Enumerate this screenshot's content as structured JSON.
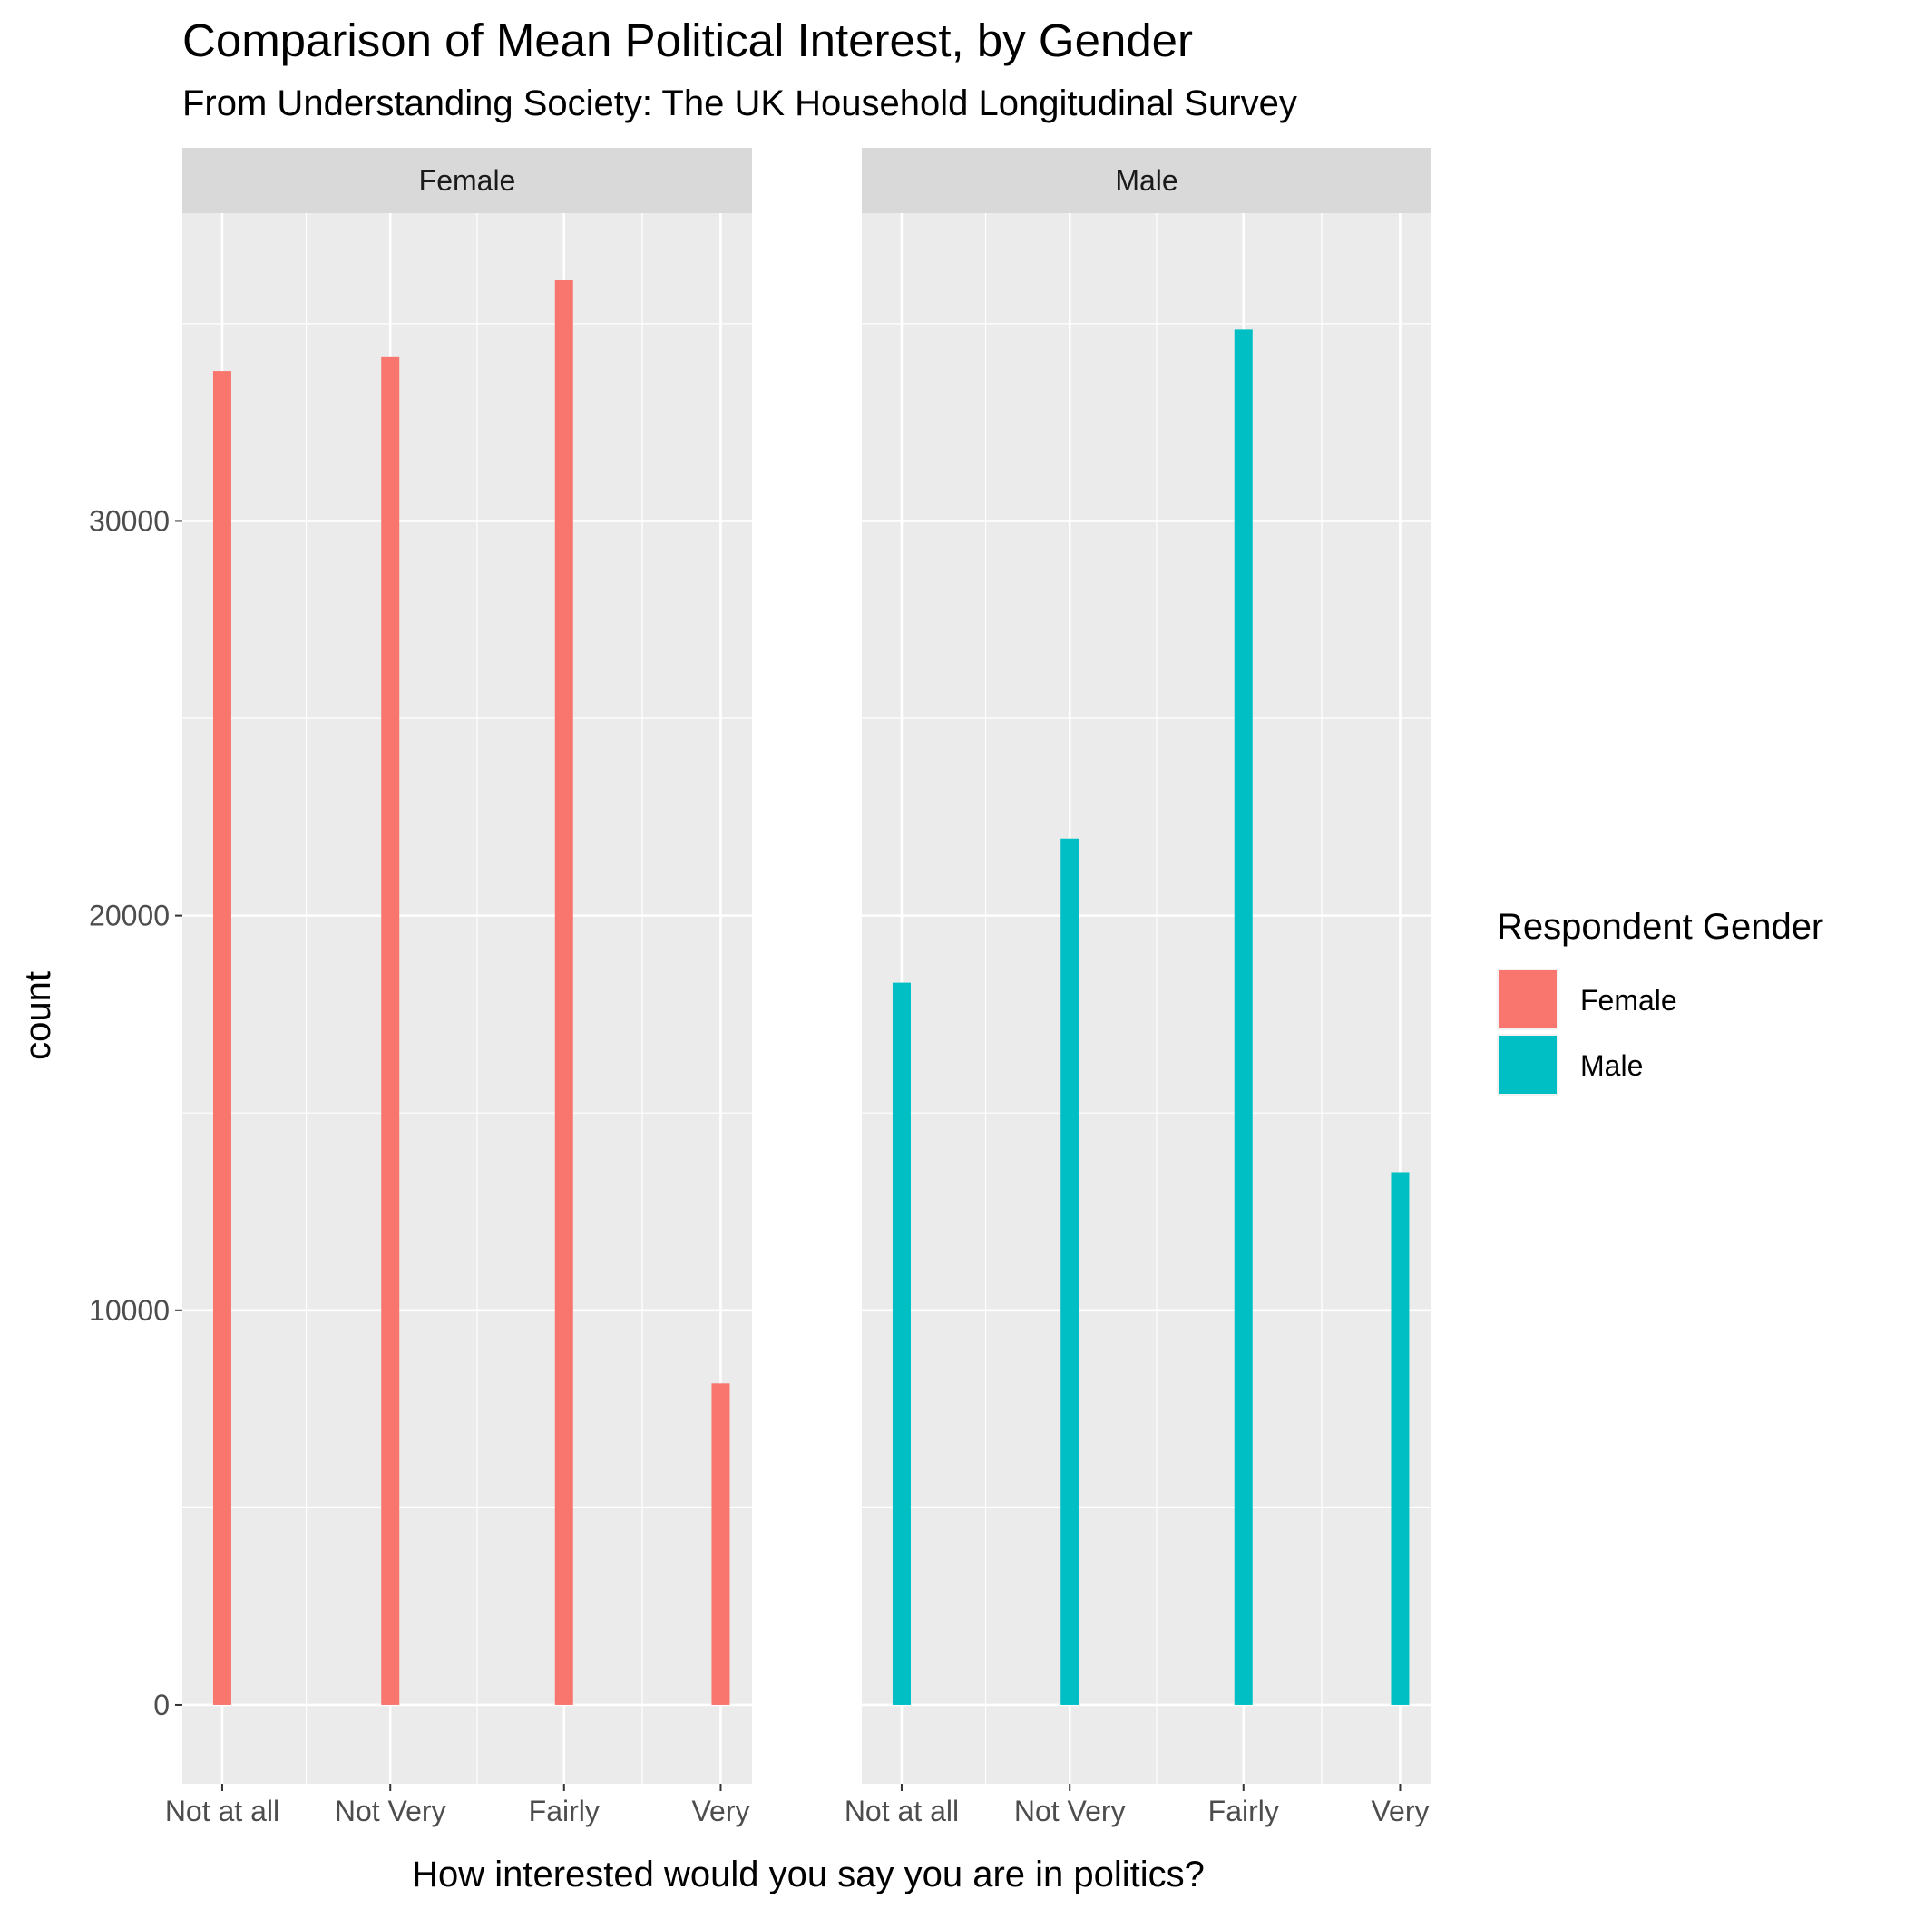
{
  "chart_data": {
    "type": "bar",
    "title": "Comparison of Mean Political Interest, by Gender",
    "subtitle": "From Understanding Society: The UK Household Longitudinal Survey",
    "xlabel": "How interested would you say you are in politics?",
    "ylabel": "count",
    "ylim": [
      -2000,
      37800
    ],
    "yticks": [
      0,
      10000,
      20000,
      30000
    ],
    "categories": [
      "Not at all",
      "Not Very",
      "Fairly",
      "Very"
    ],
    "grid": true,
    "facets": [
      "Female",
      "Male"
    ],
    "series": [
      {
        "name": "Female",
        "facet": "Female",
        "color": "#F8766D",
        "values": [
          33800,
          34150,
          36100,
          8150
        ]
      },
      {
        "name": "Male",
        "facet": "Male",
        "color": "#00BFC4",
        "values": [
          18300,
          21950,
          34850,
          13500
        ]
      }
    ],
    "legend": {
      "title": "Respondent Gender",
      "position": "right",
      "entries": [
        {
          "label": "Female",
          "color": "#F8766D"
        },
        {
          "label": "Male",
          "color": "#00BFC4"
        }
      ]
    }
  }
}
